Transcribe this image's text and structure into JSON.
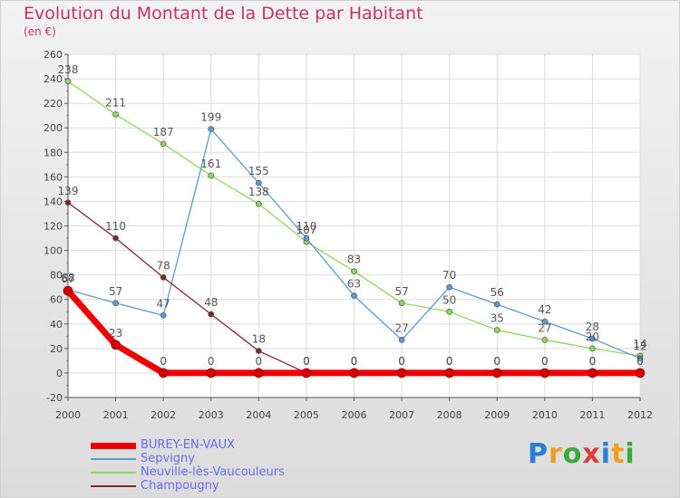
{
  "header": {
    "title": "Evolution du Montant de la Dette par Habitant",
    "subtitle": "(en €)"
  },
  "logo": {
    "text": "Proxiti",
    "colors": [
      "#2a7fd4",
      "#f0a020",
      "#3aa83a",
      "#e03c3c"
    ]
  },
  "chart_data": {
    "type": "line",
    "x": [
      2000,
      2001,
      2002,
      2003,
      2004,
      2005,
      2006,
      2007,
      2008,
      2009,
      2010,
      2011,
      2012
    ],
    "ylim": [
      -20,
      260
    ],
    "yticks": [
      -20,
      0,
      20,
      40,
      60,
      80,
      100,
      120,
      140,
      160,
      180,
      200,
      220,
      240,
      260
    ],
    "grid": true,
    "legend_position": "bottom-left",
    "series": [
      {
        "name": "BUREY-EN-VAUX",
        "color": "#ee0000",
        "width": 7,
        "values": [
          67,
          23,
          0,
          0,
          0,
          0,
          0,
          0,
          0,
          0,
          0,
          0,
          0
        ]
      },
      {
        "name": "Sepvigny",
        "color": "#5b9bd5",
        "width": 1.3,
        "values": [
          68,
          57,
          47,
          199,
          155,
          110,
          63,
          27,
          70,
          56,
          42,
          28,
          12
        ]
      },
      {
        "name": "Neuville-lès-Vaucouleurs",
        "color": "#8fd85a",
        "width": 1.3,
        "values": [
          238,
          211,
          187,
          161,
          138,
          107,
          83,
          57,
          50,
          35,
          27,
          20,
          14
        ]
      },
      {
        "name": "Champougny",
        "color": "#7a2a2a",
        "width": 1.3,
        "values": [
          139,
          110,
          78,
          48,
          18,
          0,
          0,
          0,
          0,
          0,
          0,
          0,
          0
        ]
      }
    ]
  }
}
